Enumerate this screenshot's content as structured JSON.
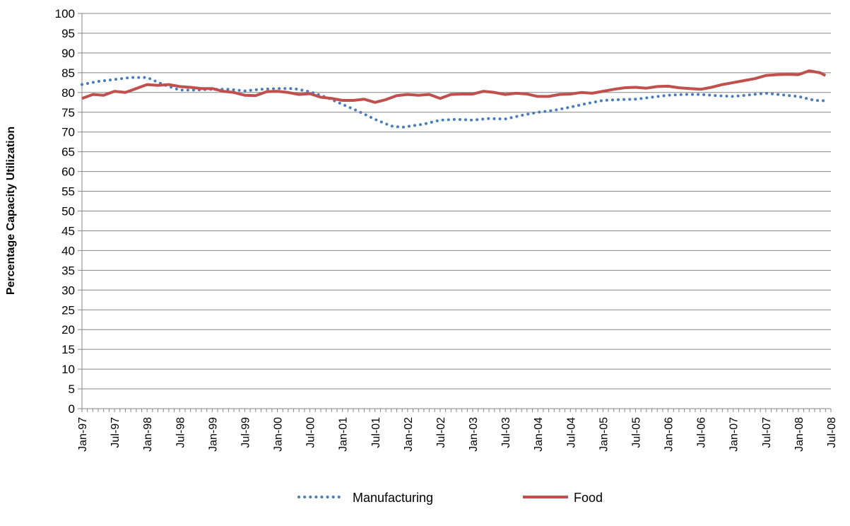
{
  "chart_data": {
    "type": "line",
    "title": "",
    "xlabel": "",
    "ylabel": "Percentage Capacity Utilization",
    "ylim": [
      0,
      100
    ],
    "yticks": [
      0,
      5,
      10,
      15,
      20,
      25,
      30,
      35,
      40,
      45,
      50,
      55,
      60,
      65,
      70,
      75,
      80,
      85,
      90,
      95,
      100
    ],
    "xlim": [
      "1997-01",
      "2008-07"
    ],
    "xticks": [
      {
        "date": "1997-01",
        "label": "Jan-97"
      },
      {
        "date": "1997-07",
        "label": "Jul-97"
      },
      {
        "date": "1998-01",
        "label": "Jan-98"
      },
      {
        "date": "1998-07",
        "label": "Jul-98"
      },
      {
        "date": "1999-01",
        "label": "Jan-99"
      },
      {
        "date": "1999-07",
        "label": "Jul-99"
      },
      {
        "date": "2000-01",
        "label": "Jan-00"
      },
      {
        "date": "2000-07",
        "label": "Jul-00"
      },
      {
        "date": "2001-01",
        "label": "Jan-01"
      },
      {
        "date": "2001-07",
        "label": "Jul-01"
      },
      {
        "date": "2002-01",
        "label": "Jan-02"
      },
      {
        "date": "2002-07",
        "label": "Jul-02"
      },
      {
        "date": "2003-01",
        "label": "Jan-03"
      },
      {
        "date": "2003-07",
        "label": "Jul-03"
      },
      {
        "date": "2004-01",
        "label": "Jan-04"
      },
      {
        "date": "2004-07",
        "label": "Jul-04"
      },
      {
        "date": "2005-01",
        "label": "Jan-05"
      },
      {
        "date": "2005-07",
        "label": "Jul-05"
      },
      {
        "date": "2006-01",
        "label": "Jan-06"
      },
      {
        "date": "2006-07",
        "label": "Jul-06"
      },
      {
        "date": "2007-01",
        "label": "Jan-07"
      },
      {
        "date": "2007-07",
        "label": "Jul-07"
      },
      {
        "date": "2008-01",
        "label": "Jan-08"
      },
      {
        "date": "2008-07",
        "label": "Jul-08"
      }
    ],
    "grid": true,
    "legend_position": "bottom",
    "series": [
      {
        "name": "Manufacturing",
        "color": "#4a7ebb",
        "style": "dotted",
        "points": [
          [
            "1997-01",
            82.0
          ],
          [
            "1997-04",
            82.8
          ],
          [
            "1997-07",
            83.3
          ],
          [
            "1997-10",
            83.8
          ],
          [
            "1998-01",
            83.8
          ],
          [
            "1998-04",
            82.0
          ],
          [
            "1998-07",
            80.6
          ],
          [
            "1998-10",
            80.6
          ],
          [
            "1999-01",
            80.8
          ],
          [
            "1999-04",
            80.8
          ],
          [
            "1999-07",
            80.4
          ],
          [
            "1999-10",
            80.8
          ],
          [
            "2000-01",
            81.0
          ],
          [
            "2000-04",
            81.0
          ],
          [
            "2000-07",
            80.2
          ],
          [
            "2000-10",
            78.8
          ],
          [
            "2001-01",
            77.0
          ],
          [
            "2001-04",
            75.2
          ],
          [
            "2001-07",
            73.2
          ],
          [
            "2001-10",
            71.5
          ],
          [
            "2001-12",
            71.2
          ],
          [
            "2002-04",
            72.0
          ],
          [
            "2002-07",
            73.0
          ],
          [
            "2002-10",
            73.2
          ],
          [
            "2003-01",
            73.0
          ],
          [
            "2003-04",
            73.4
          ],
          [
            "2003-07",
            73.3
          ],
          [
            "2003-10",
            74.2
          ],
          [
            "2004-01",
            75.0
          ],
          [
            "2004-04",
            75.5
          ],
          [
            "2004-07",
            76.3
          ],
          [
            "2004-10",
            77.2
          ],
          [
            "2005-01",
            78.0
          ],
          [
            "2005-04",
            78.2
          ],
          [
            "2005-07",
            78.3
          ],
          [
            "2005-10",
            78.8
          ],
          [
            "2006-01",
            79.3
          ],
          [
            "2006-04",
            79.5
          ],
          [
            "2006-07",
            79.5
          ],
          [
            "2006-10",
            79.2
          ],
          [
            "2007-01",
            79.0
          ],
          [
            "2007-04",
            79.4
          ],
          [
            "2007-07",
            79.8
          ],
          [
            "2007-10",
            79.4
          ],
          [
            "2008-01",
            79.0
          ],
          [
            "2008-04",
            78.0
          ],
          [
            "2008-06",
            77.9
          ]
        ]
      },
      {
        "name": "Food",
        "color": "#c0504d",
        "style": "solid",
        "points": [
          [
            "1997-01",
            78.5
          ],
          [
            "1997-03",
            79.5
          ],
          [
            "1997-05",
            79.3
          ],
          [
            "1997-07",
            80.3
          ],
          [
            "1997-09",
            80.0
          ],
          [
            "1997-11",
            81.0
          ],
          [
            "1998-01",
            82.0
          ],
          [
            "1998-03",
            81.8
          ],
          [
            "1998-05",
            82.0
          ],
          [
            "1998-07",
            81.5
          ],
          [
            "1998-09",
            81.3
          ],
          [
            "1998-11",
            81.0
          ],
          [
            "1999-01",
            81.0
          ],
          [
            "1999-03",
            80.3
          ],
          [
            "1999-05",
            80.0
          ],
          [
            "1999-07",
            79.3
          ],
          [
            "1999-09",
            79.2
          ],
          [
            "1999-11",
            80.2
          ],
          [
            "2000-01",
            80.3
          ],
          [
            "2000-03",
            80.0
          ],
          [
            "2000-05",
            79.5
          ],
          [
            "2000-07",
            79.7
          ],
          [
            "2000-09",
            78.8
          ],
          [
            "2000-11",
            78.5
          ],
          [
            "2001-01",
            78.0
          ],
          [
            "2001-03",
            78.0
          ],
          [
            "2001-05",
            78.3
          ],
          [
            "2001-07",
            77.5
          ],
          [
            "2001-09",
            78.2
          ],
          [
            "2001-11",
            79.2
          ],
          [
            "2002-01",
            79.5
          ],
          [
            "2002-03",
            79.3
          ],
          [
            "2002-05",
            79.5
          ],
          [
            "2002-07",
            78.5
          ],
          [
            "2002-09",
            79.5
          ],
          [
            "2002-11",
            79.6
          ],
          [
            "2003-01",
            79.6
          ],
          [
            "2003-03",
            80.3
          ],
          [
            "2003-05",
            80.0
          ],
          [
            "2003-07",
            79.5
          ],
          [
            "2003-09",
            79.8
          ],
          [
            "2003-11",
            79.6
          ],
          [
            "2004-01",
            79.0
          ],
          [
            "2004-03",
            79.0
          ],
          [
            "2004-05",
            79.5
          ],
          [
            "2004-07",
            79.6
          ],
          [
            "2004-09",
            80.0
          ],
          [
            "2004-11",
            79.8
          ],
          [
            "2005-01",
            80.3
          ],
          [
            "2005-03",
            80.8
          ],
          [
            "2005-05",
            81.2
          ],
          [
            "2005-07",
            81.3
          ],
          [
            "2005-09",
            81.1
          ],
          [
            "2005-11",
            81.5
          ],
          [
            "2006-01",
            81.6
          ],
          [
            "2006-03",
            81.2
          ],
          [
            "2006-05",
            81.0
          ],
          [
            "2006-07",
            80.8
          ],
          [
            "2006-09",
            81.3
          ],
          [
            "2006-11",
            82.0
          ],
          [
            "2007-01",
            82.5
          ],
          [
            "2007-03",
            83.0
          ],
          [
            "2007-05",
            83.5
          ],
          [
            "2007-07",
            84.3
          ],
          [
            "2007-09",
            84.5
          ],
          [
            "2007-11",
            84.6
          ],
          [
            "2008-01",
            84.5
          ],
          [
            "2008-03",
            85.5
          ],
          [
            "2008-05",
            85.0
          ],
          [
            "2008-06",
            84.3
          ]
        ]
      }
    ]
  }
}
